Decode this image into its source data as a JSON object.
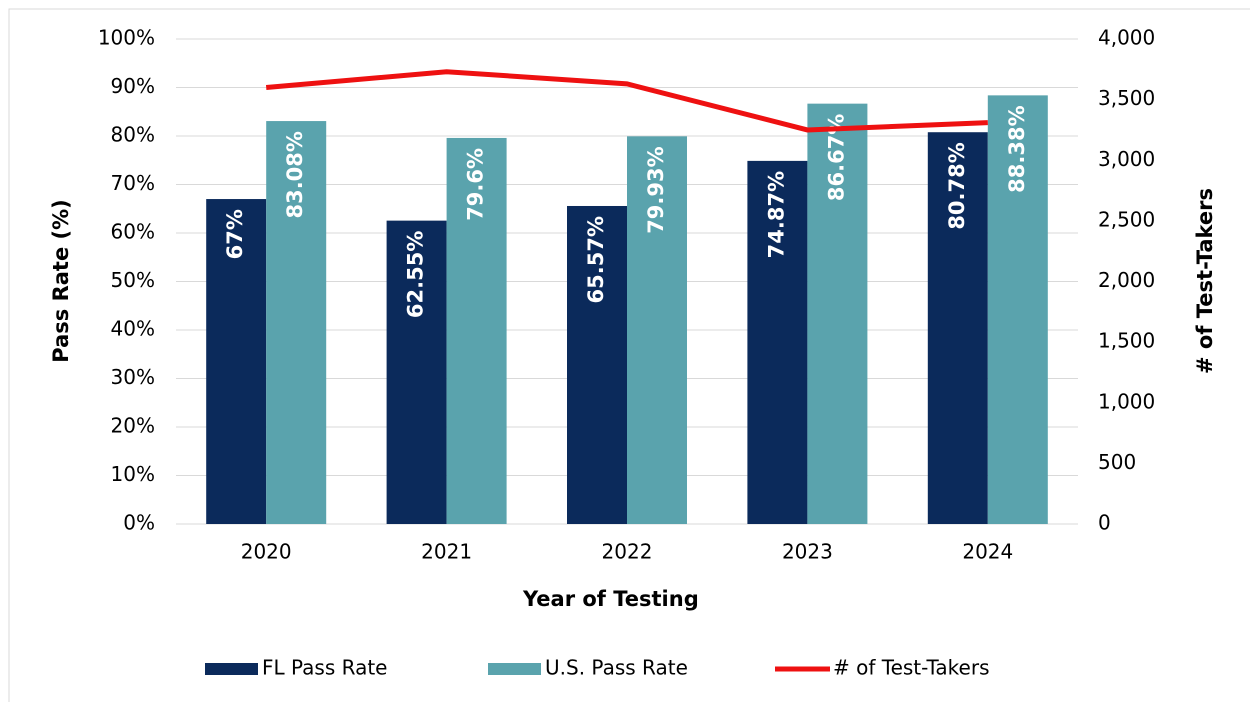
{
  "chart_data": {
    "type": "bar",
    "categories": [
      "2020",
      "2021",
      "2022",
      "2023",
      "2024"
    ],
    "series": [
      {
        "name": "FL Pass Rate",
        "color": "#0b2a5b",
        "values": [
          67,
          62.55,
          65.57,
          74.87,
          80.78
        ],
        "value_labels": [
          "67%",
          "62.55%",
          "65.57%",
          "74.87%",
          "80.78%"
        ]
      },
      {
        "name": "U.S. Pass Rate",
        "color": "#5aa3ad",
        "values": [
          83.08,
          79.6,
          79.93,
          86.67,
          88.38
        ],
        "value_labels": [
          "83.08%",
          "79.6%",
          "79.93%",
          "86.67%",
          "88.38%"
        ]
      },
      {
        "name": "# of Test-Takers",
        "color": "#ee1111",
        "type": "line",
        "axis": "y2",
        "values": [
          3600,
          3730,
          3630,
          3250,
          3310
        ]
      }
    ],
    "xlabel": "Year of Testing",
    "ylabel": "Pass Rate (%)",
    "y2label": "# of Test-Takers",
    "ylim": [
      0,
      100
    ],
    "yticks": [
      {
        "value": 0,
        "label": "0%"
      },
      {
        "value": 10,
        "label": "10%"
      },
      {
        "value": 20,
        "label": "20%"
      },
      {
        "value": 30,
        "label": "30%"
      },
      {
        "value": 40,
        "label": "40%"
      },
      {
        "value": 50,
        "label": "50%"
      },
      {
        "value": 60,
        "label": "60%"
      },
      {
        "value": 70,
        "label": "70%"
      },
      {
        "value": 80,
        "label": "80%"
      },
      {
        "value": 90,
        "label": "90%"
      },
      {
        "value": 100,
        "label": "100%"
      }
    ],
    "y2lim": [
      0,
      4000
    ],
    "y2ticks": [
      0,
      500,
      {
        "value": 1000,
        "label": "1,000"
      },
      {
        "value": 1500,
        "label": "1,500"
      },
      {
        "value": 2000,
        "label": "2,000"
      },
      {
        "value": 2500,
        "label": "2,500"
      },
      {
        "value": 3000,
        "label": "3,000"
      },
      {
        "value": 3500,
        "label": "3,500"
      },
      {
        "value": 4000,
        "label": "4,000"
      }
    ],
    "grid": true,
    "legend": "bottom"
  }
}
